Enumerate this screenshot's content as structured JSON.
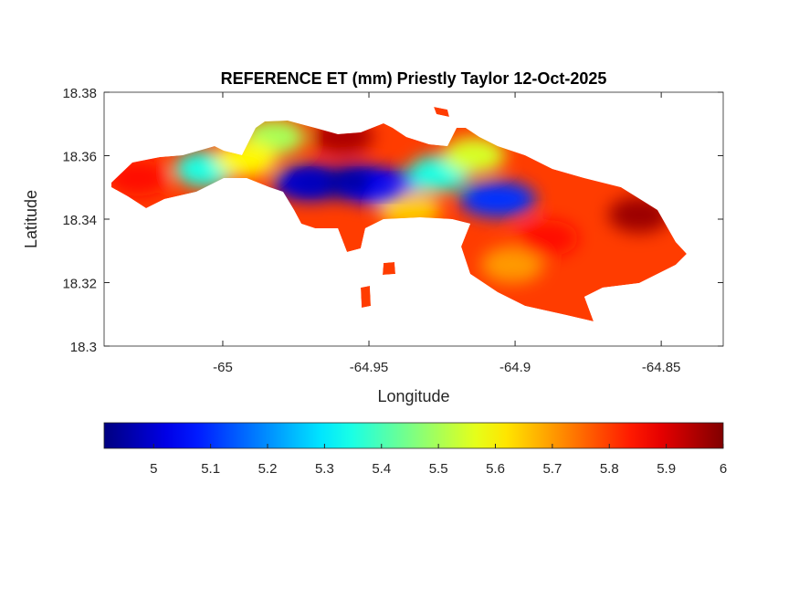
{
  "chart_data": {
    "type": "heatmap",
    "title": "REFERENCE ET (mm) Priestly Taylor 12-Oct-2025",
    "xlabel": "Longitude",
    "ylabel": "Latitude",
    "xlim": [
      -65.0406,
      -64.8288
    ],
    "ylim": [
      18.3,
      18.38
    ],
    "xticks": [
      "-65",
      "-64.95",
      "-64.9",
      "-64.85"
    ],
    "xtick_values": [
      -65,
      -64.95,
      -64.9,
      -64.85
    ],
    "yticks": [
      "18.3",
      "18.32",
      "18.34",
      "18.36",
      "18.38"
    ],
    "ytick_values": [
      18.3,
      18.32,
      18.34,
      18.36,
      18.38
    ],
    "colormap": "jet",
    "colorbar": {
      "location": "bottom",
      "clim": [
        4.913,
        6.0
      ],
      "ticks": [
        "5",
        "5.1",
        "5.2",
        "5.3",
        "5.4",
        "5.5",
        "5.6",
        "5.7",
        "5.8",
        "5.9",
        "6"
      ],
      "tick_values": [
        5,
        5.1,
        5.2,
        5.3,
        5.4,
        5.5,
        5.6,
        5.7,
        5.8,
        5.9,
        6
      ]
    },
    "background_value": 5.8,
    "value_regions": [
      {
        "lon": -64.97,
        "lat": 18.3515,
        "value": 5.0
      },
      {
        "lon": -64.954,
        "lat": 18.3515,
        "value": 4.95
      },
      {
        "lon": -64.945,
        "lat": 18.35,
        "value": 5.05
      },
      {
        "lon": -64.906,
        "lat": 18.3463,
        "value": 5.1
      },
      {
        "lon": -65.006,
        "lat": 18.3558,
        "value": 5.35
      },
      {
        "lon": -64.926,
        "lat": 18.3544,
        "value": 5.35
      },
      {
        "lon": -64.9825,
        "lat": 18.3659,
        "value": 5.5
      },
      {
        "lon": -64.914,
        "lat": 18.3601,
        "value": 5.55
      },
      {
        "lon": -64.992,
        "lat": 18.359,
        "value": 5.6
      },
      {
        "lon": -64.936,
        "lat": 18.343,
        "value": 5.65
      },
      {
        "lon": -64.901,
        "lat": 18.3256,
        "value": 5.7
      },
      {
        "lon": -64.889,
        "lat": 18.334,
        "value": 5.85
      },
      {
        "lon": -65.029,
        "lat": 18.353,
        "value": 5.85
      },
      {
        "lon": -64.959,
        "lat": 18.366,
        "value": 5.95
      },
      {
        "lon": -64.8575,
        "lat": 18.3414,
        "value": 5.97
      }
    ]
  }
}
